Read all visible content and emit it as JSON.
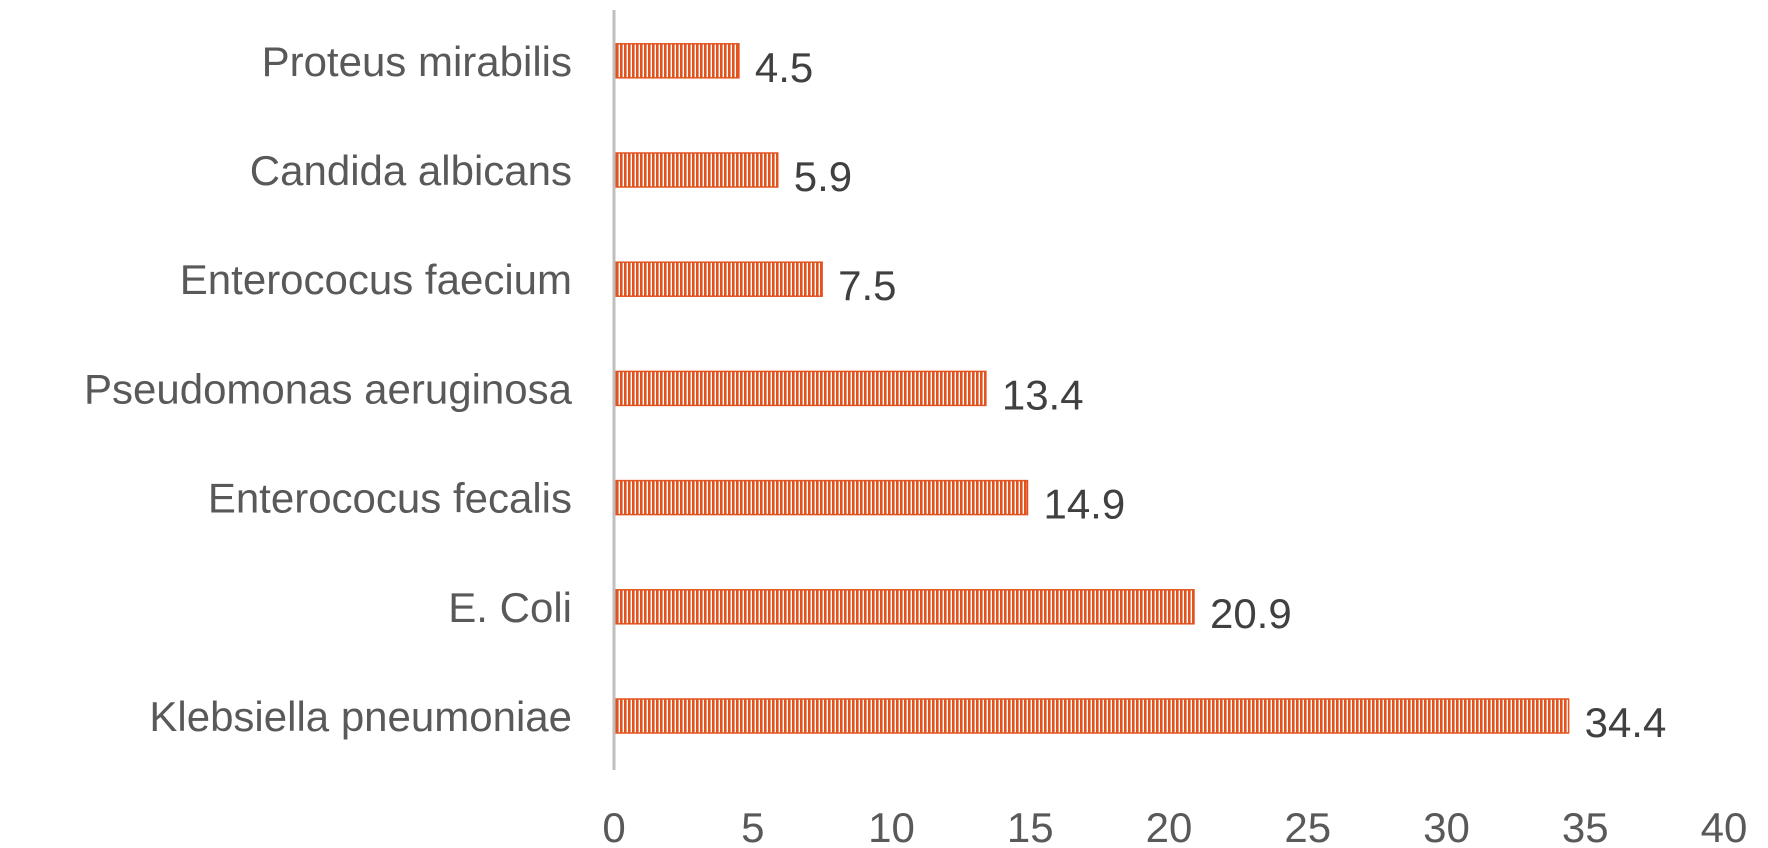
{
  "chart_data": {
    "type": "bar",
    "orientation": "horizontal",
    "title": "",
    "xlabel": "",
    "ylabel": "",
    "categories": [
      "Klebsiella pneumoniae",
      "E. Coli",
      "Enterococus fecalis",
      "Pseudomonas aeruginosa",
      "Enterococus faecium",
      "Candida albicans",
      "Proteus mirabilis"
    ],
    "values": [
      34.4,
      20.9,
      14.9,
      13.4,
      7.5,
      5.9,
      4.5
    ],
    "data_labels": [
      "34.4",
      "20.9",
      "14.9",
      "13.4",
      "7.5",
      "5.9",
      "4.5"
    ],
    "xlim": [
      0,
      40
    ],
    "x_ticks": [
      "0",
      "5",
      "10",
      "15",
      "20",
      "25",
      "30",
      "35",
      "40"
    ],
    "grid": false,
    "legend": "none",
    "bar_color": "#E2531E",
    "bar_pattern": "vertical-stripes",
    "axis_color": "#BFBFBF"
  }
}
